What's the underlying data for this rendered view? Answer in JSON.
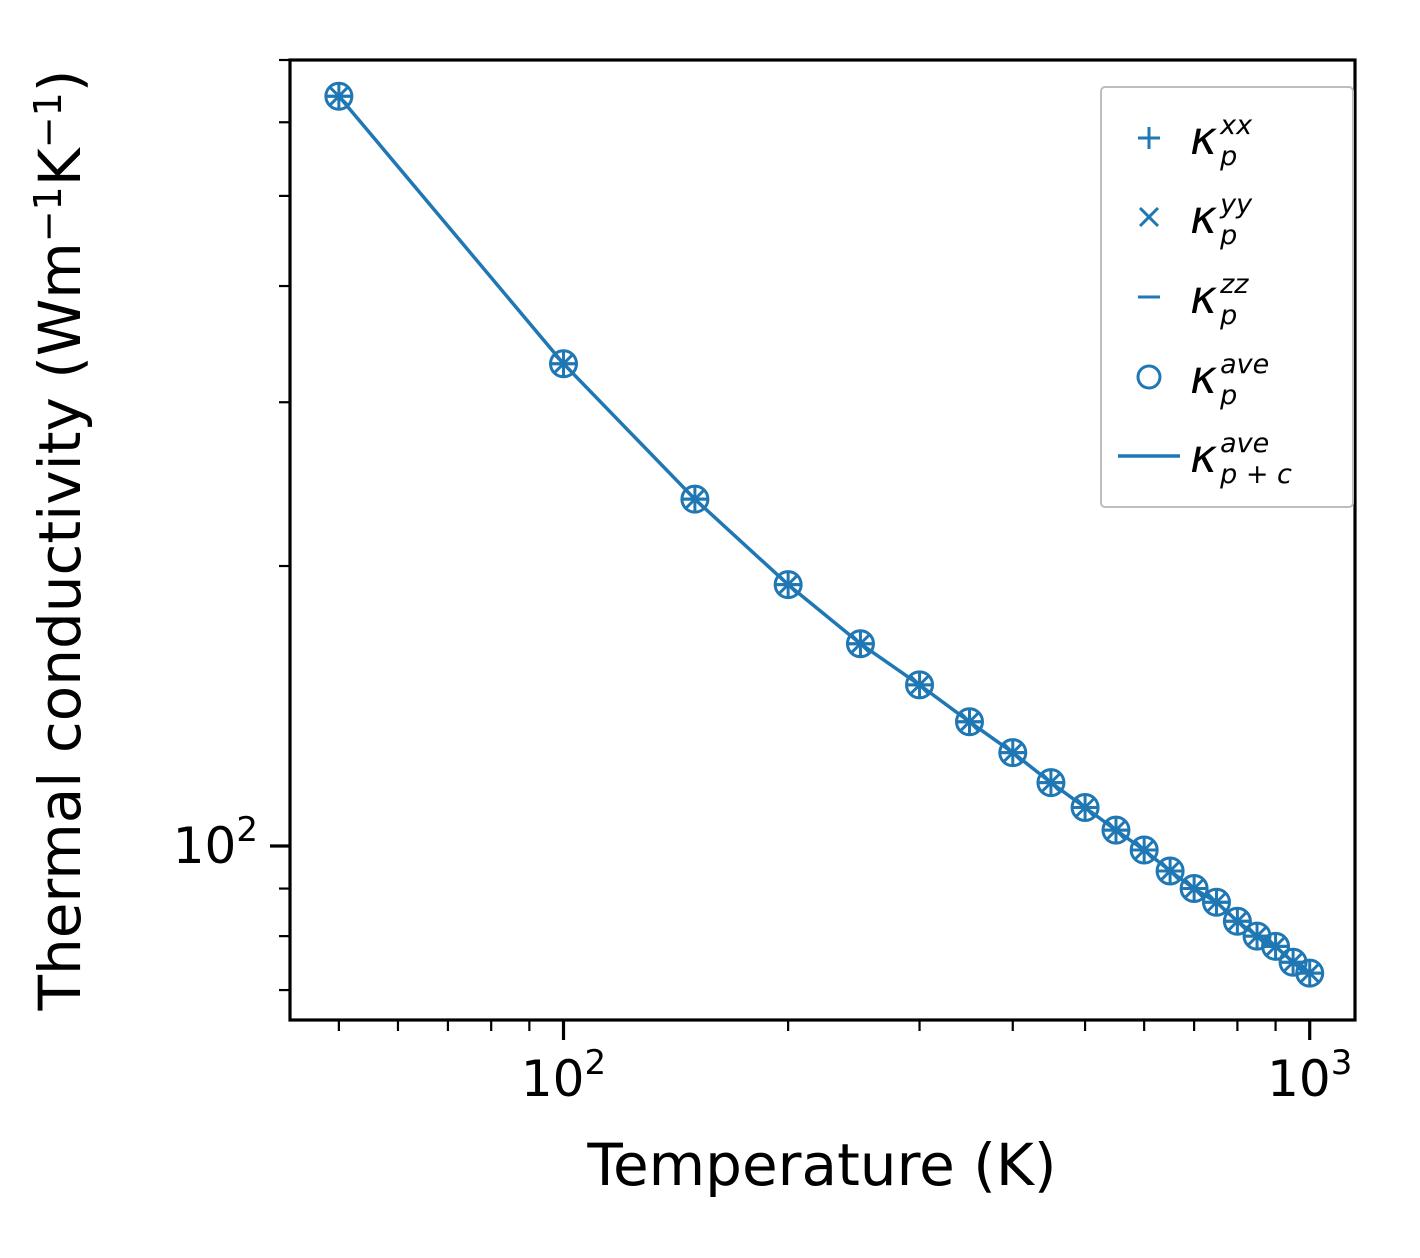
{
  "chart_data": {
    "type": "line+scatter",
    "title": "",
    "xlabel": "Temperature (K)",
    "ylabel_plain": "Thermal conductivity (Wm−1K−1)",
    "ylabel_parts": [
      {
        "text": "Thermal conductivity (Wm",
        "sup": false
      },
      {
        "text": "−1",
        "sup": true
      },
      {
        "text": "K",
        "sup": false
      },
      {
        "text": "−1",
        "sup": true
      },
      {
        "text": ")",
        "sup": false
      }
    ],
    "x_scale": "log",
    "y_scale": "log",
    "xlim": [
      43,
      1150
    ],
    "ylim": [
      65,
      700
    ],
    "x": [
      50,
      100,
      150,
      200,
      250,
      300,
      350,
      400,
      450,
      500,
      550,
      600,
      650,
      700,
      750,
      800,
      850,
      900,
      950,
      1000
    ],
    "shared_values": [
      640,
      330,
      236,
      191,
      165,
      149,
      136,
      126,
      117,
      110,
      104,
      99,
      94,
      90,
      87,
      83,
      80,
      78,
      75,
      73
    ],
    "series": [
      {
        "name": "kappa_p_xx",
        "marker": "plus",
        "legend": {
          "sym": "κ",
          "sup": "xx",
          "sub": "p"
        }
      },
      {
        "name": "kappa_p_yy",
        "marker": "x",
        "legend": {
          "sym": "κ",
          "sup": "yy",
          "sub": "p"
        }
      },
      {
        "name": "kappa_p_zz",
        "marker": "minus",
        "legend": {
          "sym": "κ",
          "sup": "zz",
          "sub": "p"
        }
      },
      {
        "name": "kappa_p_ave",
        "marker": "circle",
        "legend": {
          "sym": "κ",
          "sup": "ave",
          "sub": "p"
        }
      },
      {
        "name": "kappa_p_plus_c_ave",
        "marker": "line",
        "legend": {
          "sym": "κ",
          "sup": "ave",
          "sub": "p + c"
        }
      }
    ],
    "x_ticks": {
      "major": [
        {
          "value": 100,
          "base": "10",
          "exp": "2"
        },
        {
          "value": 1000,
          "base": "10",
          "exp": "3"
        }
      ],
      "minor": [
        50,
        60,
        70,
        80,
        90,
        200,
        300,
        400,
        500,
        600,
        700,
        800,
        900
      ]
    },
    "y_ticks": {
      "major": [
        {
          "value": 100,
          "base": "10",
          "exp": "2"
        }
      ],
      "minor": [
        70,
        80,
        90,
        200,
        300,
        400,
        500,
        600,
        700
      ]
    },
    "legend_position": "upper right",
    "grid": false,
    "colors": {
      "series": "#1f77b4",
      "axis": "#000000",
      "text": "#000000",
      "legend_border": "#bdbdbd",
      "background": "#ffffff"
    }
  }
}
